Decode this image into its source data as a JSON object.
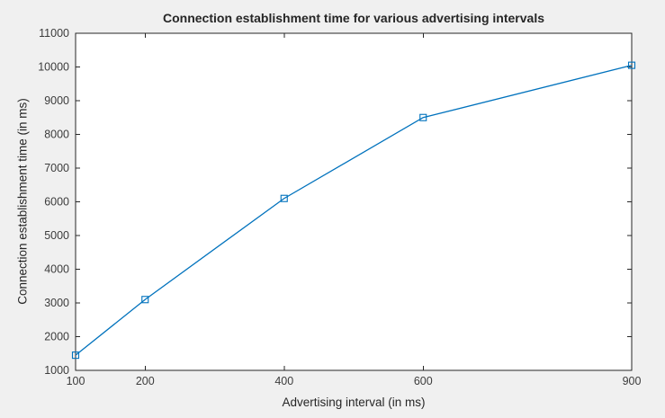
{
  "style": {
    "figure_background": "#f0f0f0",
    "plot_background": "#ffffff",
    "axis_color": "#262626",
    "tick_label_color": "#3c3c3c"
  },
  "chart_data": {
    "type": "line",
    "title": "Connection establishment time for various advertising intervals",
    "xlabel": "Advertising interval (in ms)",
    "ylabel": "Connection establishment time (in ms)",
    "x": [
      100,
      200,
      400,
      600,
      900
    ],
    "y": [
      1450,
      3100,
      6100,
      8500,
      10050
    ],
    "xlim": [
      100,
      900
    ],
    "ylim": [
      1000,
      11000
    ],
    "xticks": [
      100,
      200,
      400,
      600,
      900
    ],
    "yticks": [
      1000,
      2000,
      3000,
      4000,
      5000,
      6000,
      7000,
      8000,
      9000,
      10000,
      11000
    ],
    "grid": false,
    "box": true,
    "tick_direction": "in",
    "line_color": "#0072BD",
    "marker": "open-square"
  }
}
